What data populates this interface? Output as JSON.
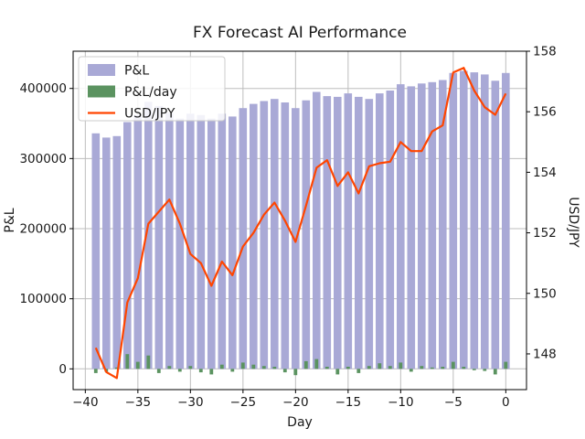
{
  "chart_data": {
    "type": "bar",
    "title": "FX Forecast AI Performance",
    "xlabel": "Day",
    "ylabel_left": "P&L",
    "ylabel_right": "USD/JPY",
    "grid": true,
    "legend_position": "upper left",
    "legend_labels": [
      "P&L",
      "P&L/day",
      "USD/JPY"
    ],
    "days": [
      -39,
      -38,
      -37,
      -36,
      -35,
      -34,
      -33,
      -32,
      -31,
      -30,
      -29,
      -28,
      -27,
      -26,
      -25,
      -24,
      -23,
      -22,
      -21,
      -20,
      -19,
      -18,
      -17,
      -16,
      -15,
      -14,
      -13,
      -12,
      -11,
      -10,
      -9,
      -8,
      -7,
      -6,
      -5,
      -4,
      -3,
      -2,
      -1,
      0
    ],
    "series": [
      {
        "name": "P&L",
        "type": "bar",
        "axis": "left",
        "color": "#a9a9d6",
        "values": [
          336000,
          330000,
          332000,
          352000,
          362000,
          381000,
          375000,
          365000,
          357000,
          364000,
          362000,
          357000,
          364000,
          360000,
          372000,
          378000,
          382000,
          385000,
          380000,
          372000,
          383000,
          395000,
          389000,
          388000,
          393000,
          388000,
          385000,
          393000,
          397000,
          406000,
          403000,
          407000,
          409000,
          412000,
          422000,
          425000,
          423000,
          420000,
          411000,
          422000
        ]
      },
      {
        "name": "P&L/day",
        "type": "bar",
        "axis": "left",
        "color": "#5b9360",
        "values": [
          -6000,
          -4000,
          2000,
          21000,
          10000,
          19000,
          -6000,
          4000,
          -4000,
          4000,
          -5000,
          -8000,
          6000,
          -4000,
          9000,
          6000,
          4000,
          3000,
          -5000,
          -9000,
          11000,
          14000,
          3000,
          -8000,
          3000,
          -6000,
          4000,
          8000,
          4000,
          9000,
          -4000,
          4000,
          2000,
          3000,
          10000,
          3000,
          -2000,
          -3000,
          -8000,
          10000
        ]
      },
      {
        "name": "USD/JPY",
        "type": "line",
        "axis": "right",
        "color": "#ff4500",
        "values": [
          148.2,
          147.4,
          147.2,
          149.7,
          150.5,
          152.3,
          152.7,
          153.1,
          152.3,
          151.3,
          151.0,
          150.25,
          151.05,
          150.6,
          151.55,
          152.0,
          152.6,
          153.0,
          152.4,
          151.7,
          152.9,
          154.15,
          154.4,
          153.55,
          154.0,
          153.3,
          154.2,
          154.3,
          154.35,
          155.0,
          154.7,
          154.7,
          155.35,
          155.55,
          157.3,
          157.45,
          156.7,
          156.15,
          155.9,
          156.6
        ]
      }
    ],
    "x_axis": {
      "range": [
        -41.16,
        1.97
      ],
      "tick_values": [
        -40,
        -35,
        -30,
        -25,
        -20,
        -15,
        -10,
        -5,
        0
      ],
      "tick_labels": [
        "−40",
        "−35",
        "−30",
        "−25",
        "−20",
        "−15",
        "−10",
        "−5",
        "0"
      ]
    },
    "left_axis": {
      "range": [
        -29600,
        453100
      ],
      "tick_values": [
        0,
        100000,
        200000,
        300000,
        400000
      ],
      "tick_labels": [
        "0",
        "100000",
        "200000",
        "300000",
        "400000"
      ]
    },
    "right_axis": {
      "range": [
        146.82,
        158.0
      ],
      "tick_values": [
        148,
        150,
        152,
        154,
        156,
        158
      ],
      "tick_labels": [
        "148",
        "150",
        "152",
        "154",
        "156",
        "158"
      ]
    }
  }
}
